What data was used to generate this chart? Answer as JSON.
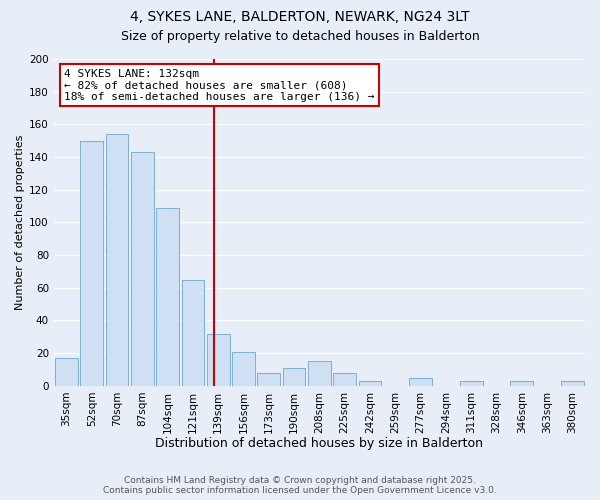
{
  "title": "4, SYKES LANE, BALDERTON, NEWARK, NG24 3LT",
  "subtitle": "Size of property relative to detached houses in Balderton",
  "xlabel": "Distribution of detached houses by size in Balderton",
  "ylabel": "Number of detached properties",
  "categories": [
    "35sqm",
    "52sqm",
    "70sqm",
    "87sqm",
    "104sqm",
    "121sqm",
    "139sqm",
    "156sqm",
    "173sqm",
    "190sqm",
    "208sqm",
    "225sqm",
    "242sqm",
    "259sqm",
    "277sqm",
    "294sqm",
    "311sqm",
    "328sqm",
    "346sqm",
    "363sqm",
    "380sqm"
  ],
  "values": [
    17,
    150,
    154,
    143,
    109,
    65,
    32,
    21,
    8,
    11,
    15,
    8,
    3,
    0,
    5,
    0,
    3,
    0,
    3,
    0,
    3
  ],
  "bar_color": "#cfe0f5",
  "bar_edge_color": "#7ab0d8",
  "vline_color": "#cc0000",
  "annotation_title": "4 SYKES LANE: 132sqm",
  "annotation_line1": "← 82% of detached houses are smaller (608)",
  "annotation_line2": "18% of semi-detached houses are larger (136) →",
  "annotation_box_color": "#ffffff",
  "annotation_box_edge": "#cc0000",
  "ylim": [
    0,
    200
  ],
  "yticks": [
    0,
    20,
    40,
    60,
    80,
    100,
    120,
    140,
    160,
    180,
    200
  ],
  "background_color": "#e8eef8",
  "grid_color": "#ffffff",
  "footer_line1": "Contains HM Land Registry data © Crown copyright and database right 2025.",
  "footer_line2": "Contains public sector information licensed under the Open Government Licence v3.0.",
  "title_fontsize": 10,
  "subtitle_fontsize": 9,
  "xlabel_fontsize": 9,
  "ylabel_fontsize": 8,
  "tick_fontsize": 7.5,
  "annotation_fontsize": 8,
  "footer_fontsize": 6.5
}
